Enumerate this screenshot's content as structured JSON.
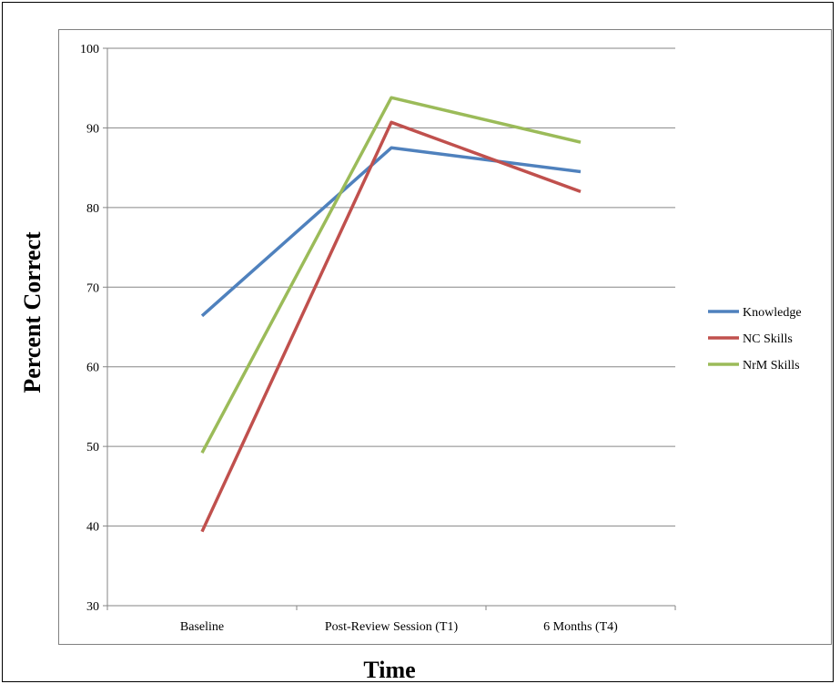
{
  "chart_data": {
    "type": "line",
    "categories": [
      "Baseline",
      "Post-Review Session (T1)",
      "6 Months (T4)"
    ],
    "series": [
      {
        "name": "Knowledge",
        "color": "#4f81bd",
        "values": [
          66.4,
          87.5,
          84.5
        ]
      },
      {
        "name": "NC Skills",
        "color": "#c0504d",
        "values": [
          39.3,
          90.7,
          82.0
        ]
      },
      {
        "name": "NrM Skills",
        "color": "#9bbb59",
        "values": [
          49.2,
          93.8,
          88.2
        ]
      }
    ],
    "xlabel": "Time",
    "ylabel": "Percent Correct",
    "ylim": [
      30,
      100
    ],
    "yticks": [
      30,
      40,
      50,
      60,
      70,
      80,
      90,
      100
    ],
    "grid": true,
    "legend_position": "right"
  }
}
